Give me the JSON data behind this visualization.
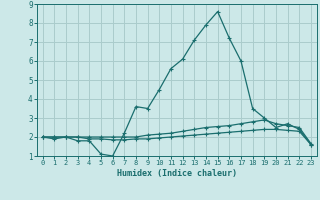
{
  "title": "",
  "xlabel": "Humidex (Indice chaleur)",
  "ylabel": "",
  "background_color": "#cce8e8",
  "grid_color": "#aacccc",
  "line_color": "#1a6e6e",
  "xlim": [
    -0.5,
    23.5
  ],
  "ylim": [
    1,
    9
  ],
  "xticks": [
    0,
    1,
    2,
    3,
    4,
    5,
    6,
    7,
    8,
    9,
    10,
    11,
    12,
    13,
    14,
    15,
    16,
    17,
    18,
    19,
    20,
    21,
    22,
    23
  ],
  "yticks": [
    1,
    2,
    3,
    4,
    5,
    6,
    7,
    8,
    9
  ],
  "series1_x": [
    0,
    1,
    2,
    3,
    4,
    5,
    6,
    7,
    8,
    9,
    10,
    11,
    12,
    13,
    14,
    15,
    16,
    17,
    18,
    19,
    20,
    21,
    22,
    23
  ],
  "series1_y": [
    2.0,
    1.9,
    2.0,
    1.8,
    1.8,
    1.1,
    1.0,
    2.2,
    3.6,
    3.5,
    4.5,
    5.6,
    6.1,
    7.1,
    7.9,
    8.6,
    7.2,
    6.0,
    3.5,
    3.0,
    2.5,
    2.7,
    2.4,
    1.6
  ],
  "series2_x": [
    0,
    1,
    2,
    3,
    4,
    5,
    6,
    7,
    8,
    9,
    10,
    11,
    12,
    13,
    14,
    15,
    16,
    17,
    18,
    19,
    20,
    21,
    22,
    23
  ],
  "series2_y": [
    2.0,
    2.0,
    2.0,
    2.0,
    2.0,
    2.0,
    2.0,
    2.0,
    2.0,
    2.1,
    2.15,
    2.2,
    2.3,
    2.4,
    2.5,
    2.55,
    2.6,
    2.7,
    2.8,
    2.9,
    2.7,
    2.6,
    2.5,
    1.65
  ],
  "series3_x": [
    0,
    1,
    2,
    3,
    4,
    5,
    6,
    7,
    8,
    9,
    10,
    11,
    12,
    13,
    14,
    15,
    16,
    17,
    18,
    19,
    20,
    21,
    22,
    23
  ],
  "series3_y": [
    2.0,
    2.0,
    2.0,
    2.0,
    1.9,
    1.9,
    1.85,
    1.85,
    1.9,
    1.9,
    1.95,
    2.0,
    2.05,
    2.1,
    2.15,
    2.2,
    2.25,
    2.3,
    2.35,
    2.4,
    2.4,
    2.35,
    2.3,
    1.6
  ]
}
